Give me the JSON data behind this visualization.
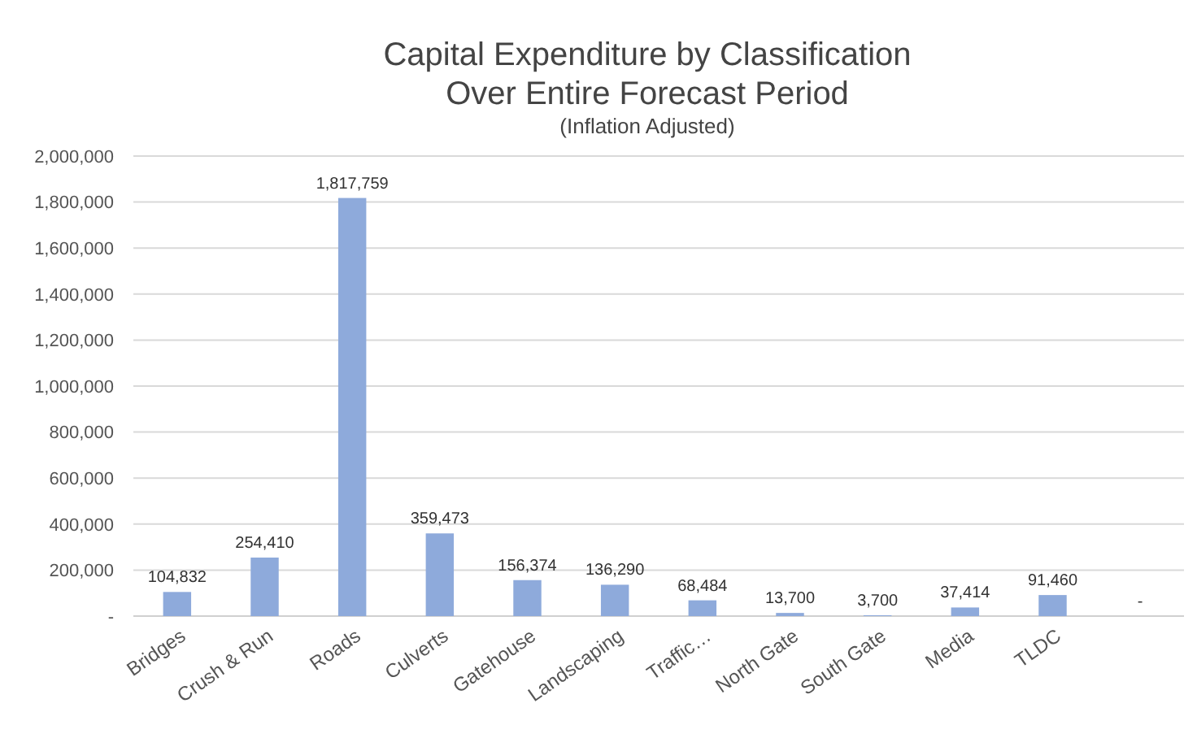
{
  "chart_data": {
    "type": "bar",
    "title": "Capital Expenditure by Classification\nOver Entire Forecast Period",
    "subtitle": "(Inflation Adjusted)",
    "categories": [
      "Bridges",
      "Crush & Run",
      "Roads",
      "Culverts",
      "Gatehouse",
      "Landscaping",
      "Traffic…",
      "North Gate",
      "South Gate",
      "Media",
      "TLDC",
      null
    ],
    "values": [
      104832,
      254410,
      1817759,
      359473,
      156374,
      136290,
      68484,
      13700,
      3700,
      37414,
      91460,
      0
    ],
    "value_labels": [
      "104,832",
      "254,410",
      "1,817,759",
      "359,473",
      "156,374",
      "136,290",
      "68,484",
      "13,700",
      "3,700",
      "37,414",
      "91,460",
      "-"
    ],
    "color": "#8eaadb",
    "ylim": [
      0,
      2000000
    ],
    "yticks": [
      {
        "value": 0,
        "label": "-"
      },
      {
        "value": 200000,
        "label": "200,000"
      },
      {
        "value": 400000,
        "label": "400,000"
      },
      {
        "value": 600000,
        "label": "600,000"
      },
      {
        "value": 800000,
        "label": "800,000"
      },
      {
        "value": 1000000,
        "label": "1,000,000"
      },
      {
        "value": 1200000,
        "label": "1,200,000"
      },
      {
        "value": 1400000,
        "label": "1,400,000"
      },
      {
        "value": 1600000,
        "label": "1,600,000"
      },
      {
        "value": 1800000,
        "label": "1,800,000"
      },
      {
        "value": 2000000,
        "label": "2,000,000"
      }
    ],
    "grid": "y"
  }
}
